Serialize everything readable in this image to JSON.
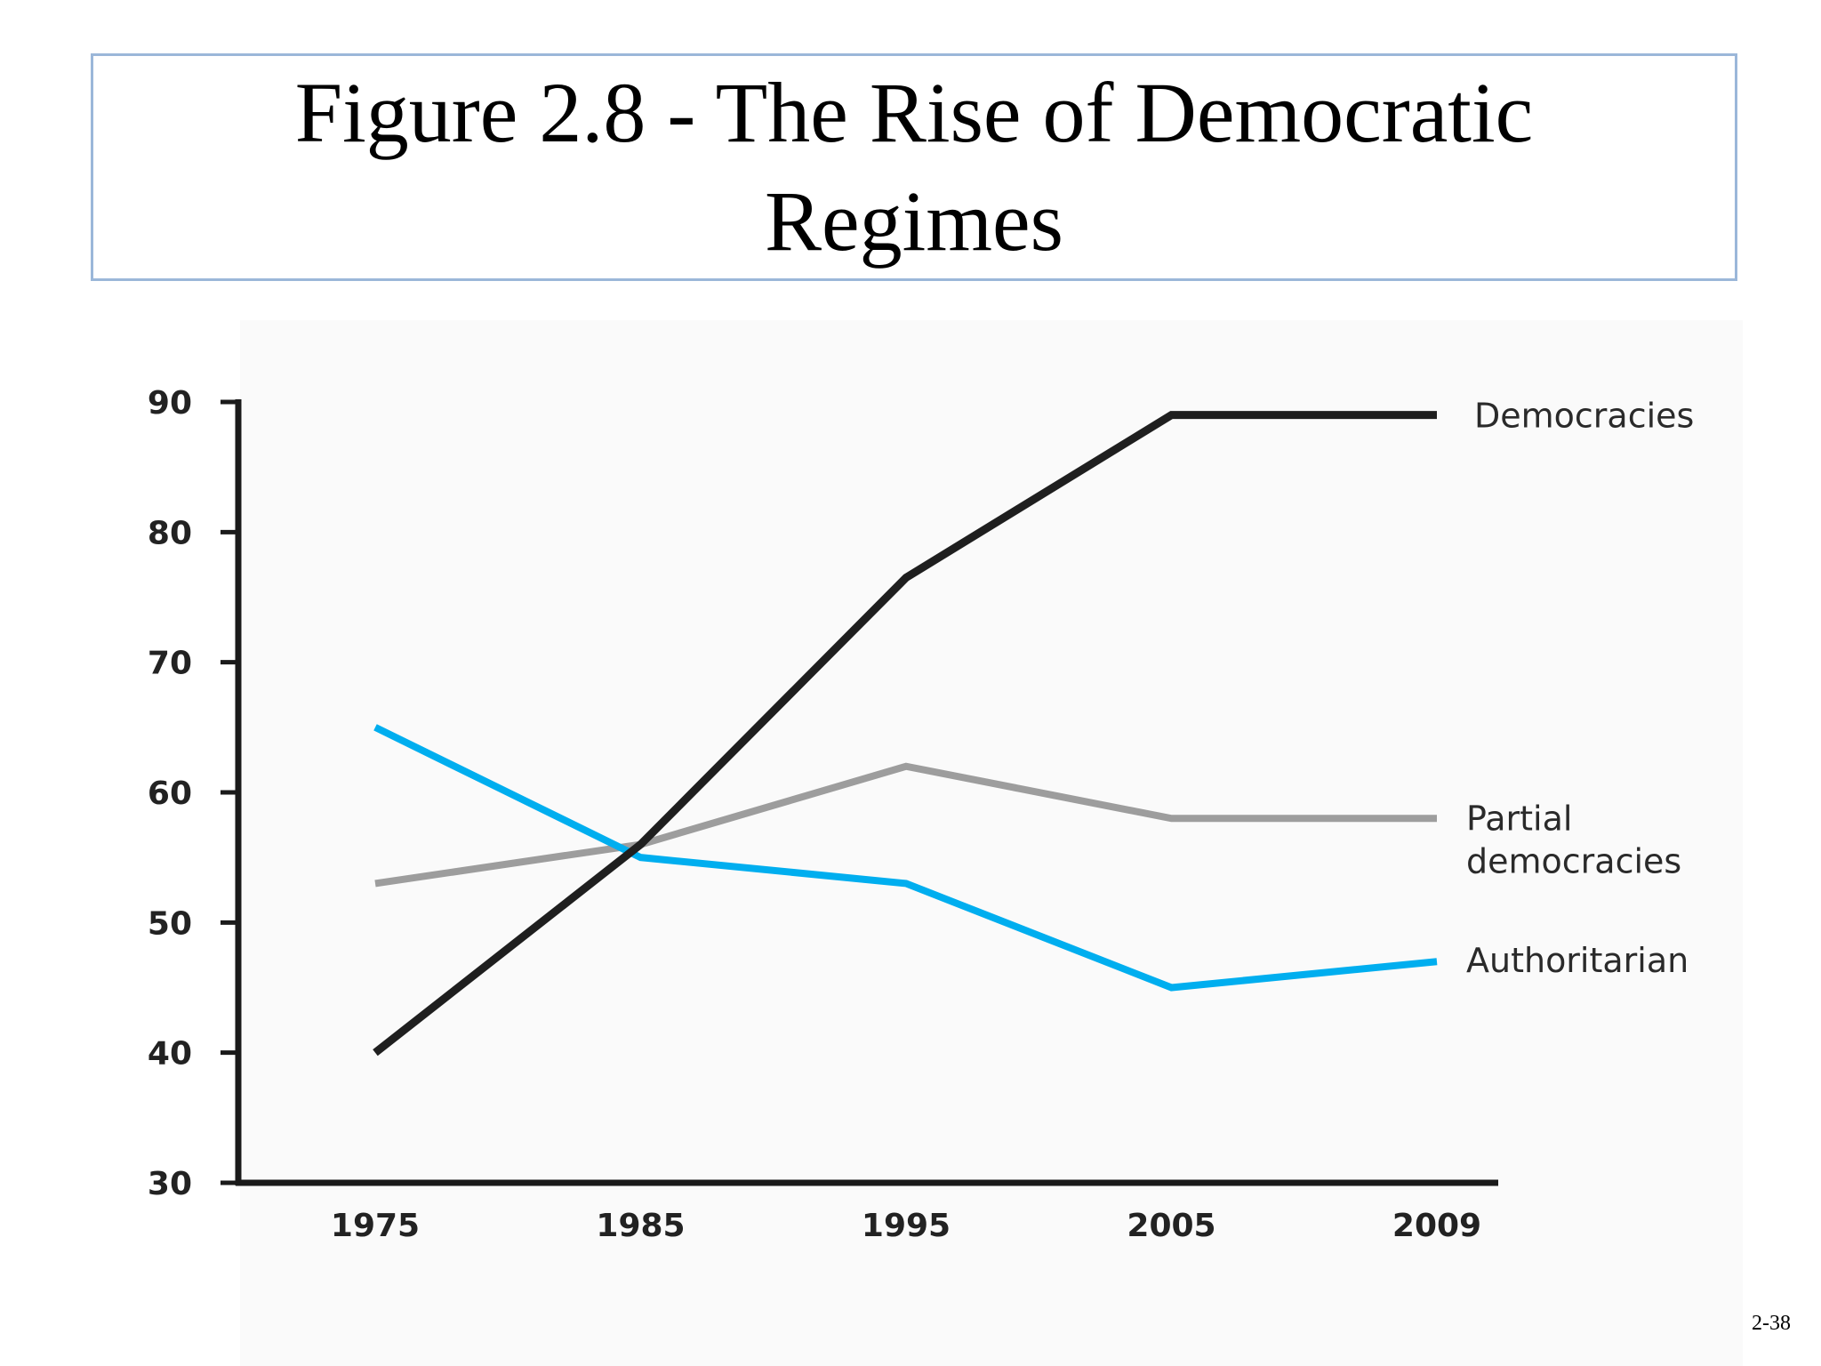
{
  "slide": {
    "title": "Figure 2.8 - The Rise of Democratic Regimes",
    "page_number": "2-38"
  },
  "chart_data": {
    "type": "line",
    "title": "",
    "xlabel": "",
    "ylabel": "",
    "categories": [
      "1975",
      "1985",
      "1995",
      "2005",
      "2009"
    ],
    "ylim": [
      30,
      90
    ],
    "yticks": [
      30,
      40,
      50,
      60,
      70,
      80,
      90
    ],
    "grid": false,
    "legend": "direct labels at line ends (right)",
    "series": [
      {
        "name": "Democracies",
        "values": [
          40,
          56,
          76.5,
          89,
          89
        ],
        "color": "#1f1f1f"
      },
      {
        "name": "Partial democracies",
        "values": [
          53,
          56,
          62,
          58,
          58
        ],
        "color": "#9d9d9d"
      },
      {
        "name": "Authoritarian",
        "values": [
          65,
          55,
          53,
          45,
          47
        ],
        "color": "#00aeef"
      }
    ]
  }
}
